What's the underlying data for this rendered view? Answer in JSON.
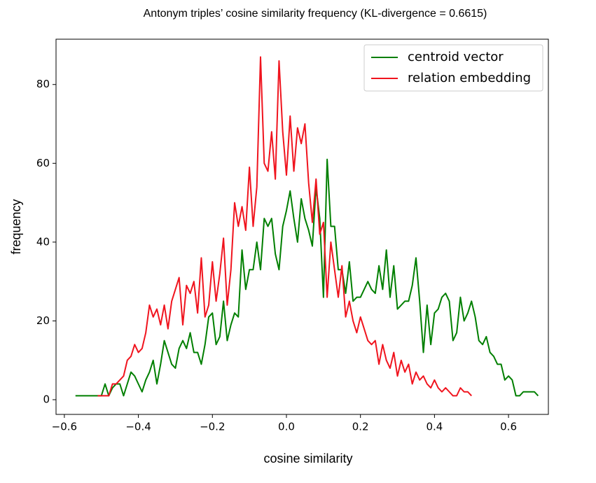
{
  "chart_data": {
    "type": "line",
    "title": "Antonym triples’ cosine similarity frequency (KL-divergence = 0.6615)",
    "xlabel": "cosine similarity",
    "ylabel": "frequency",
    "xlim": [
      -0.6225,
      0.7077
    ],
    "ylim": [
      -3.73,
      91.5
    ],
    "xticks": [
      {
        "value": -0.6,
        "label": "−0.6"
      },
      {
        "value": -0.4,
        "label": "−0.4"
      },
      {
        "value": -0.2,
        "label": "−0.2"
      },
      {
        "value": 0,
        "label": "0.0"
      },
      0.2,
      0.4,
      0.6
    ],
    "yticks": [
      0,
      20,
      40,
      60,
      80
    ],
    "legend": "upper right",
    "series": [
      {
        "name": "centroid vector",
        "color": "#007f00",
        "x": [
          -0.57,
          -0.56,
          -0.55,
          -0.54,
          -0.53,
          -0.52,
          -0.51,
          -0.5,
          -0.49,
          -0.48,
          -0.47,
          -0.46,
          -0.45,
          -0.44,
          -0.43,
          -0.42,
          -0.41,
          -0.4,
          -0.39,
          -0.38,
          -0.37,
          -0.36,
          -0.35,
          -0.34,
          -0.33,
          -0.32,
          -0.31,
          -0.3,
          -0.29,
          -0.28,
          -0.27,
          -0.26,
          -0.25,
          -0.24,
          -0.23,
          -0.22,
          -0.21,
          -0.2,
          -0.19,
          -0.18,
          -0.17,
          -0.16,
          -0.15,
          -0.14,
          -0.13,
          -0.12,
          -0.11,
          -0.1,
          -0.09,
          -0.08,
          -0.07,
          -0.06,
          -0.05,
          -0.04,
          -0.03,
          -0.02,
          -0.01,
          0.0,
          0.01,
          0.02,
          0.03,
          0.04,
          0.05,
          0.06,
          0.07,
          0.08,
          0.09,
          0.1,
          0.11,
          0.12,
          0.13,
          0.14,
          0.15,
          0.16,
          0.17,
          0.18,
          0.19,
          0.2,
          0.21,
          0.22,
          0.23,
          0.24,
          0.25,
          0.26,
          0.27,
          0.28,
          0.29,
          0.3,
          0.31,
          0.32,
          0.33,
          0.34,
          0.35,
          0.36,
          0.37,
          0.38,
          0.39,
          0.4,
          0.41,
          0.42,
          0.43,
          0.44,
          0.45,
          0.46,
          0.47,
          0.48,
          0.49,
          0.5,
          0.51,
          0.52,
          0.53,
          0.54,
          0.55,
          0.56,
          0.57,
          0.58,
          0.59,
          0.6,
          0.61,
          0.62,
          0.63,
          0.64,
          0.65,
          0.66,
          0.67,
          0.68
        ],
        "values": [
          1,
          1,
          1,
          1,
          1,
          1,
          1,
          1,
          4,
          1,
          3,
          4,
          4,
          1,
          4,
          7,
          6,
          4,
          2,
          5,
          7,
          10,
          4,
          9,
          15,
          12,
          9,
          8,
          13,
          15,
          13,
          17,
          12,
          12,
          9,
          14,
          21,
          22,
          14,
          16,
          25,
          15,
          19,
          22,
          21,
          38,
          28,
          33,
          33,
          40,
          33,
          46,
          44,
          46,
          37,
          33,
          44,
          48,
          53,
          46,
          40,
          51,
          46,
          43,
          39,
          54,
          46,
          26,
          61,
          44,
          44,
          33,
          33,
          27,
          35,
          25,
          26,
          26,
          28,
          30,
          28,
          27,
          34,
          28,
          38,
          26,
          34,
          23,
          24,
          25,
          25,
          29,
          36,
          25,
          12,
          24,
          14,
          22,
          23,
          26,
          27,
          25,
          15,
          17,
          26,
          20,
          22,
          25,
          21,
          15,
          14,
          16,
          12,
          11,
          9,
          9,
          5,
          6,
          5,
          1,
          1,
          2,
          2,
          2,
          2,
          1
        ]
      },
      {
        "name": "relation embedding",
        "color": "#f0141e",
        "x": [
          -0.51,
          -0.5,
          -0.49,
          -0.48,
          -0.47,
          -0.46,
          -0.45,
          -0.44,
          -0.43,
          -0.42,
          -0.41,
          -0.4,
          -0.39,
          -0.38,
          -0.37,
          -0.36,
          -0.35,
          -0.34,
          -0.33,
          -0.32,
          -0.31,
          -0.3,
          -0.29,
          -0.28,
          -0.27,
          -0.26,
          -0.25,
          -0.24,
          -0.23,
          -0.22,
          -0.21,
          -0.2,
          -0.19,
          -0.18,
          -0.17,
          -0.16,
          -0.15,
          -0.14,
          -0.13,
          -0.12,
          -0.11,
          -0.1,
          -0.09,
          -0.08,
          -0.07,
          -0.06,
          -0.05,
          -0.04,
          -0.03,
          -0.02,
          -0.01,
          0.0,
          0.01,
          0.02,
          0.03,
          0.04,
          0.05,
          0.06,
          0.07,
          0.08,
          0.09,
          0.1,
          0.11,
          0.12,
          0.13,
          0.14,
          0.15,
          0.16,
          0.17,
          0.18,
          0.19,
          0.2,
          0.21,
          0.22,
          0.23,
          0.24,
          0.25,
          0.26,
          0.27,
          0.28,
          0.29,
          0.3,
          0.31,
          0.32,
          0.33,
          0.34,
          0.35,
          0.36,
          0.37,
          0.38,
          0.39,
          0.4,
          0.41,
          0.42,
          0.43,
          0.44,
          0.45,
          0.46,
          0.47,
          0.48,
          0.49,
          0.5
        ],
        "values": [
          1,
          1,
          1,
          1,
          4,
          4,
          5,
          6,
          10,
          11,
          14,
          12,
          13,
          17,
          24,
          21,
          23,
          19,
          24,
          18,
          25,
          28,
          31,
          19,
          29,
          27,
          30,
          22,
          36,
          21,
          24,
          35,
          25,
          32,
          41,
          24,
          33,
          50,
          44,
          49,
          43,
          59,
          44,
          54,
          87,
          60,
          58,
          68,
          56,
          86,
          68,
          57,
          72,
          58,
          69,
          65,
          70,
          55,
          45,
          56,
          42,
          45,
          26,
          40,
          33,
          26,
          34,
          21,
          25,
          20,
          17,
          21,
          18,
          15,
          14,
          15,
          9,
          14,
          10,
          8,
          12,
          6,
          10,
          7,
          9,
          4,
          7,
          5,
          6,
          4,
          3,
          5,
          3,
          2,
          3,
          2,
          1,
          1,
          3,
          2,
          2,
          1
        ]
      }
    ]
  }
}
